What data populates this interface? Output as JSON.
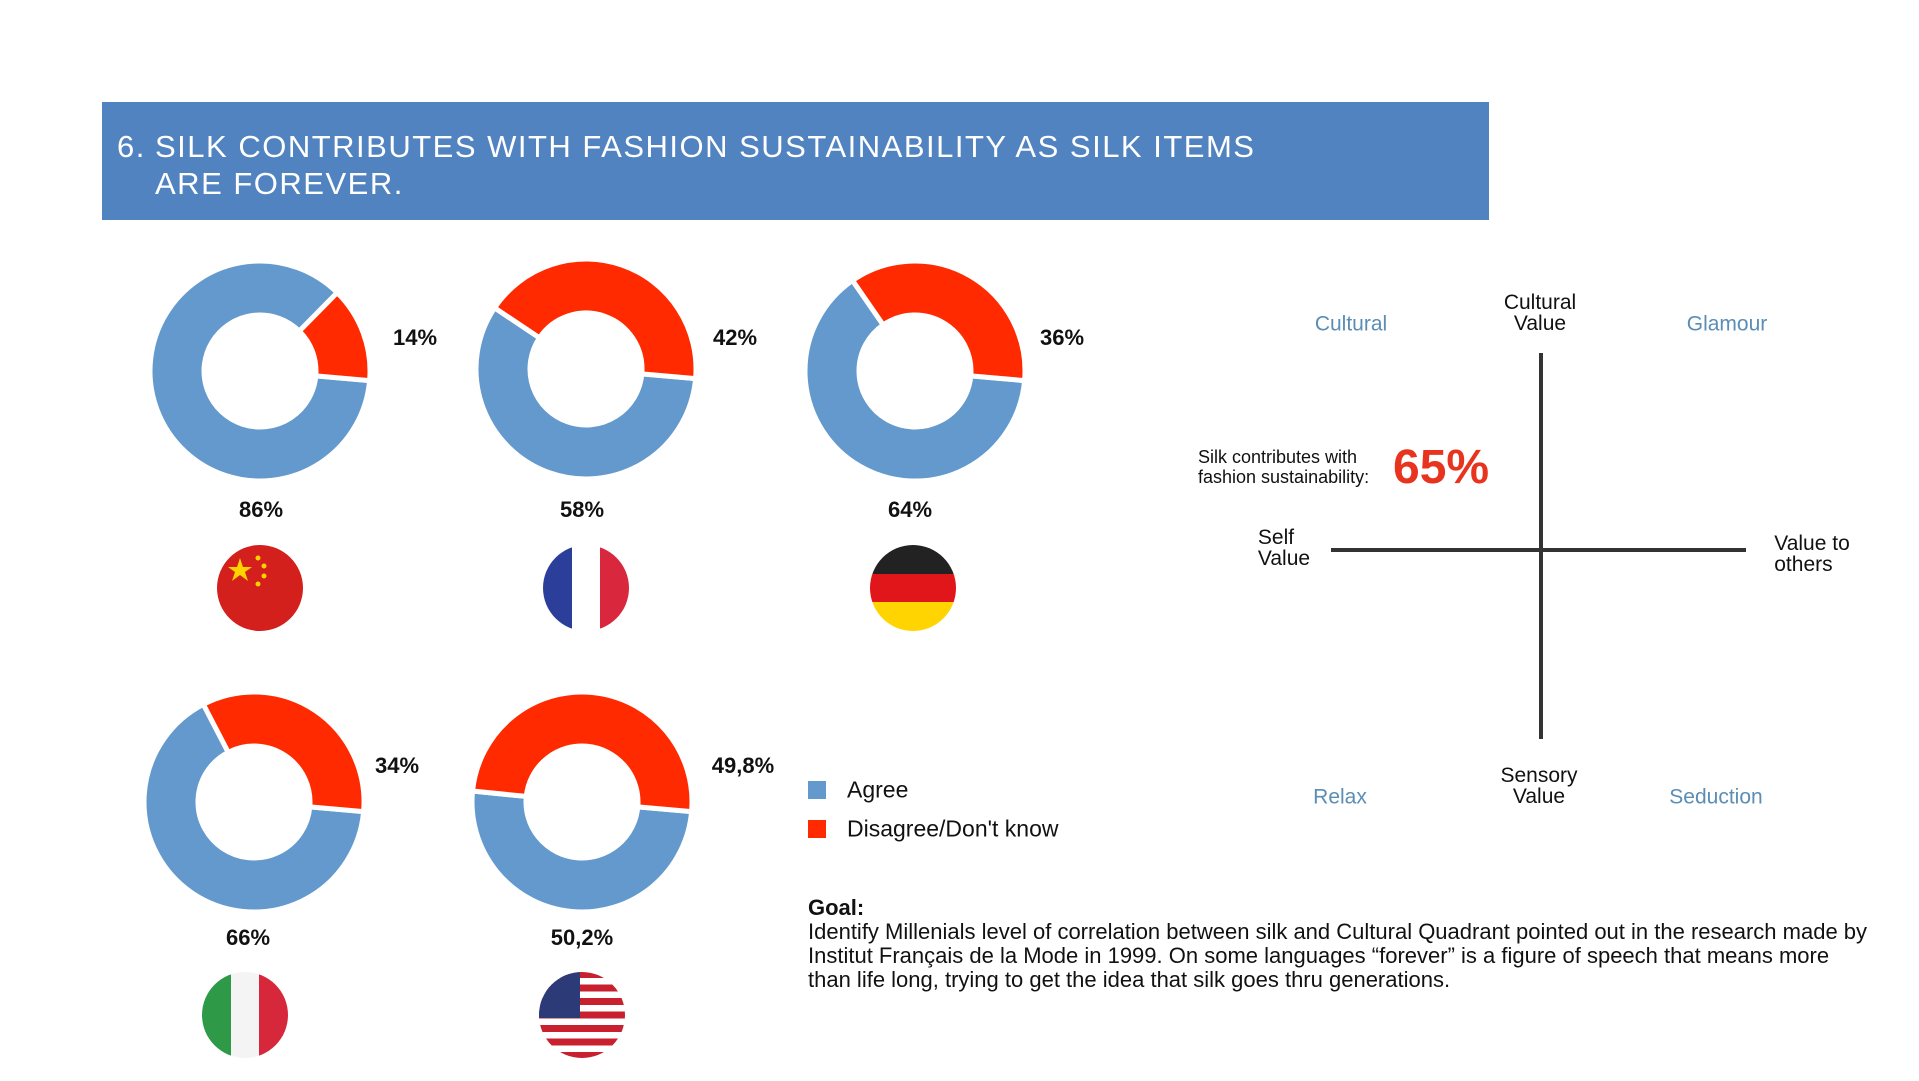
{
  "header": {
    "number": "6.",
    "title_line1": "Silk contributes with fashion sustainability as silk items",
    "title_line2": "are forever."
  },
  "colors": {
    "agree": "#6399cc",
    "disagree": "#ff2a00",
    "banner": "#5283c1",
    "quadrant_label": "#5b8db5",
    "highlight": "#e8331f"
  },
  "chart_data": [
    {
      "type": "pie",
      "variant": "donut",
      "country": "China",
      "flag_icon": "china-flag-icon",
      "categories": [
        "Agree",
        "Disagree/Don't know"
      ],
      "values": [
        86,
        14
      ],
      "labels": [
        "86%",
        "14%"
      ]
    },
    {
      "type": "pie",
      "variant": "donut",
      "country": "France",
      "flag_icon": "france-flag-icon",
      "categories": [
        "Agree",
        "Disagree/Don't know"
      ],
      "values": [
        58,
        42
      ],
      "labels": [
        "58%",
        "42%"
      ]
    },
    {
      "type": "pie",
      "variant": "donut",
      "country": "Germany",
      "flag_icon": "germany-flag-icon",
      "categories": [
        "Agree",
        "Disagree/Don't know"
      ],
      "values": [
        64,
        36
      ],
      "labels": [
        "64%",
        "36%"
      ]
    },
    {
      "type": "pie",
      "variant": "donut",
      "country": "Italy",
      "flag_icon": "italy-flag-icon",
      "categories": [
        "Agree",
        "Disagree/Don't know"
      ],
      "values": [
        66,
        34
      ],
      "labels": [
        "66%",
        "34%"
      ]
    },
    {
      "type": "pie",
      "variant": "donut",
      "country": "USA",
      "flag_icon": "usa-flag-icon",
      "categories": [
        "Agree",
        "Disagree/Don't know"
      ],
      "values": [
        50.2,
        49.8
      ],
      "labels": [
        "50,2%",
        "49,8%"
      ]
    }
  ],
  "legend": {
    "agree": "Agree",
    "disagree": "Disagree/Don't know"
  },
  "goal": {
    "heading": "Goal:",
    "text": "Identify Millenials level of correlation between silk and Cultural Quadrant pointed out in the research made by Institut Français de la Mode in 1999. On some languages “forever” is a figure of speech that means more than life long, trying to get the idea that silk goes thru generations."
  },
  "quadrant": {
    "top_axis": "Cultural\nValue",
    "bottom_axis": "Sensory\nValue",
    "left_axis": "Self\nValue",
    "right_axis": "Value to\nothers",
    "top_left": "Cultural",
    "top_right": "Glamour",
    "bottom_left": "Relax",
    "bottom_right": "Seduction",
    "stat_label": "Silk contributes with\nfashion sustainability:",
    "stat_value": "65%"
  }
}
